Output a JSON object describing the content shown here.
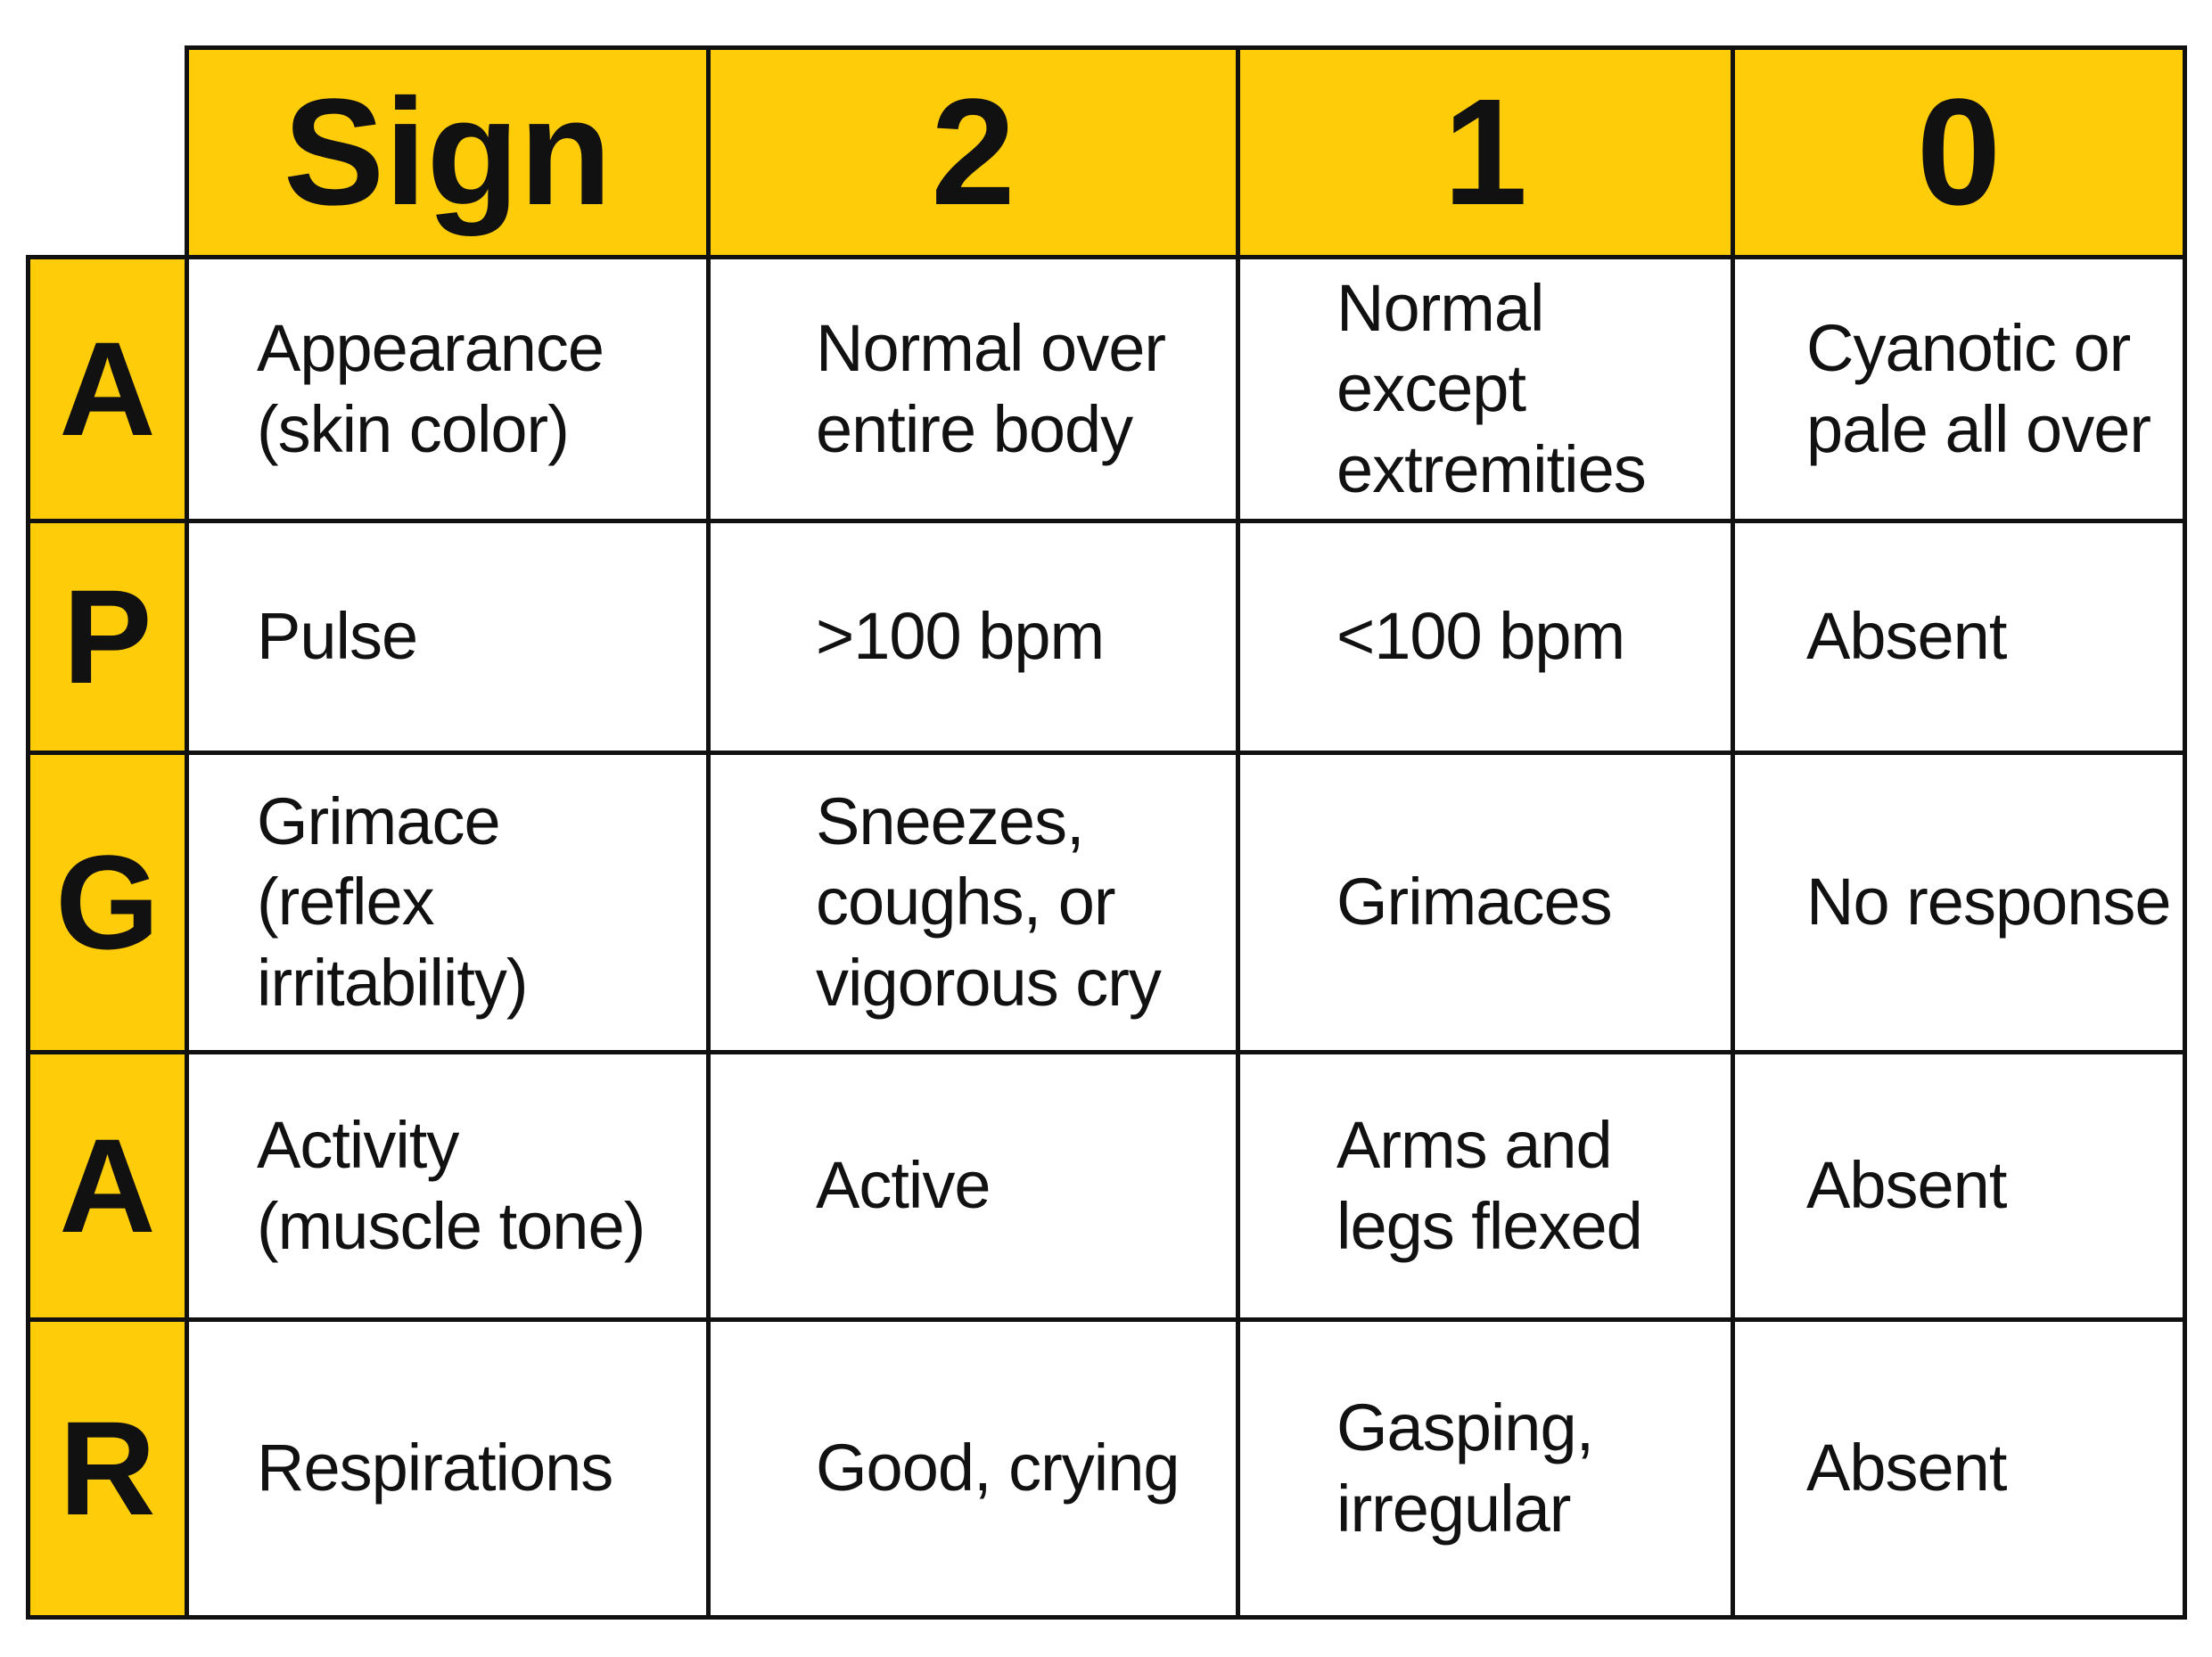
{
  "header": [
    "Sign",
    "2",
    "1",
    "0"
  ],
  "rows": [
    {
      "letter": "A",
      "cells": [
        [
          "Appearance",
          "(skin color)"
        ],
        [
          "Normal over",
          "entire body"
        ],
        [
          "Normal",
          "except",
          "extremities"
        ],
        [
          "Cyanotic or",
          "pale all over"
        ]
      ]
    },
    {
      "letter": "P",
      "cells": [
        [
          "Pulse"
        ],
        [
          ">100 bpm"
        ],
        [
          "<100 bpm"
        ],
        [
          "Absent"
        ]
      ]
    },
    {
      "letter": "G",
      "cells": [
        [
          "Grimace",
          "(reflex",
          "irritability)"
        ],
        [
          "Sneezes,",
          "coughs, or",
          "vigorous cry"
        ],
        [
          "Grimaces"
        ],
        [
          "No response"
        ]
      ]
    },
    {
      "letter": "A",
      "cells": [
        [
          "Activity",
          "(muscle tone)"
        ],
        [
          "Active"
        ],
        [
          "Arms and",
          "legs flexed"
        ],
        [
          "Absent"
        ]
      ]
    },
    {
      "letter": "R",
      "cells": [
        [
          "Respirations"
        ],
        [
          "Good, crying"
        ],
        [
          "Gasping,",
          "irregular"
        ],
        [
          "Absent"
        ]
      ]
    }
  ]
}
